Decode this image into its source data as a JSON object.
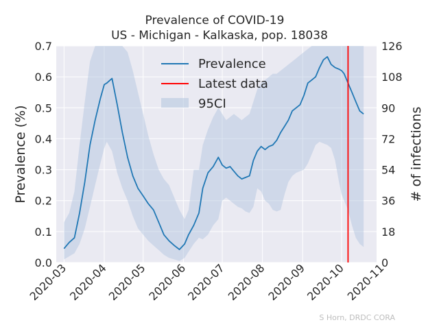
{
  "chart_data": {
    "type": "line",
    "title": "Prevalence of COVID-19",
    "subtitle": "US - Michigan - Kalkaska, pop. 18038",
    "xlabel": "",
    "ylabel": "Prevalence (%)",
    "ylabel_right": "# of infections",
    "ylim": [
      0,
      0.7
    ],
    "ylim_right": [
      0,
      126
    ],
    "y_ticks": [
      "0.0",
      "0.1",
      "0.2",
      "0.3",
      "0.4",
      "0.5",
      "0.6",
      "0.7"
    ],
    "y_ticks_right": [
      "0",
      "18",
      "36",
      "54",
      "72",
      "90",
      "108",
      "126"
    ],
    "x_ticks": [
      "2020-03",
      "2020-04",
      "2020-05",
      "2020-06",
      "2020-07",
      "2020-08",
      "2020-09",
      "2020-10",
      "2020-11"
    ],
    "xlim": [
      "2020-02-24",
      "2020-10-28"
    ],
    "grid": true,
    "legend_position": "top-center",
    "legend": [
      {
        "label": "Prevalence",
        "kind": "line",
        "color": "#1f77b4"
      },
      {
        "label": "Latest data",
        "kind": "line",
        "color": "#ff0000"
      },
      {
        "label": "95CI",
        "kind": "patch",
        "color": "#b0c4de"
      }
    ],
    "latest_data_date": "2020-10-06",
    "series": [
      {
        "name": "Prevalence",
        "x": [
          "2020-03-01",
          "2020-03-05",
          "2020-03-09",
          "2020-03-13",
          "2020-03-17",
          "2020-03-21",
          "2020-03-25",
          "2020-03-29",
          "2020-04-01",
          "2020-04-03",
          "2020-04-07",
          "2020-04-11",
          "2020-04-15",
          "2020-04-19",
          "2020-04-23",
          "2020-04-27",
          "2020-05-01",
          "2020-05-05",
          "2020-05-09",
          "2020-05-13",
          "2020-05-17",
          "2020-05-21",
          "2020-05-25",
          "2020-05-29",
          "2020-06-02",
          "2020-06-05",
          "2020-06-09",
          "2020-06-13",
          "2020-06-16",
          "2020-06-20",
          "2020-06-24",
          "2020-06-28",
          "2020-07-01",
          "2020-07-04",
          "2020-07-07",
          "2020-07-10",
          "2020-07-13",
          "2020-07-16",
          "2020-07-19",
          "2020-07-22",
          "2020-07-25",
          "2020-07-28",
          "2020-07-31",
          "2020-08-03",
          "2020-08-06",
          "2020-08-09",
          "2020-08-12",
          "2020-08-15",
          "2020-08-18",
          "2020-08-21",
          "2020-08-24",
          "2020-08-27",
          "2020-08-30",
          "2020-09-02",
          "2020-09-05",
          "2020-09-08",
          "2020-09-11",
          "2020-09-14",
          "2020-09-17",
          "2020-09-20",
          "2020-09-23",
          "2020-09-26",
          "2020-09-29",
          "2020-10-01",
          "2020-10-03",
          "2020-10-06",
          "2020-10-09",
          "2020-10-12",
          "2020-10-15",
          "2020-10-18"
        ],
        "values": [
          0.045,
          0.065,
          0.08,
          0.16,
          0.26,
          0.38,
          0.46,
          0.53,
          0.575,
          0.58,
          0.595,
          0.51,
          0.42,
          0.34,
          0.28,
          0.24,
          0.215,
          0.19,
          0.17,
          0.13,
          0.09,
          0.07,
          0.055,
          0.042,
          0.06,
          0.09,
          0.12,
          0.16,
          0.24,
          0.29,
          0.31,
          0.34,
          0.315,
          0.305,
          0.31,
          0.295,
          0.28,
          0.27,
          0.275,
          0.28,
          0.33,
          0.36,
          0.375,
          0.365,
          0.375,
          0.38,
          0.395,
          0.42,
          0.44,
          0.46,
          0.49,
          0.5,
          0.51,
          0.54,
          0.58,
          0.59,
          0.6,
          0.63,
          0.655,
          0.665,
          0.64,
          0.63,
          0.625,
          0.62,
          0.61,
          0.58,
          0.55,
          0.52,
          0.49,
          0.48
        ]
      },
      {
        "name": "95CI",
        "x": [
          "2020-03-01",
          "2020-03-05",
          "2020-03-09",
          "2020-03-13",
          "2020-03-17",
          "2020-03-21",
          "2020-03-25",
          "2020-03-29",
          "2020-04-01",
          "2020-04-03",
          "2020-04-07",
          "2020-04-11",
          "2020-04-15",
          "2020-04-19",
          "2020-04-23",
          "2020-04-27",
          "2020-05-01",
          "2020-05-05",
          "2020-05-09",
          "2020-05-13",
          "2020-05-17",
          "2020-05-21",
          "2020-05-25",
          "2020-05-29",
          "2020-06-02",
          "2020-06-05",
          "2020-06-09",
          "2020-06-13",
          "2020-06-16",
          "2020-06-20",
          "2020-06-24",
          "2020-06-28",
          "2020-07-01",
          "2020-07-04",
          "2020-07-07",
          "2020-07-10",
          "2020-07-13",
          "2020-07-16",
          "2020-07-19",
          "2020-07-22",
          "2020-07-25",
          "2020-07-28",
          "2020-07-31",
          "2020-08-03",
          "2020-08-06",
          "2020-08-09",
          "2020-08-12",
          "2020-08-15",
          "2020-08-18",
          "2020-08-21",
          "2020-08-24",
          "2020-08-27",
          "2020-08-30",
          "2020-09-02",
          "2020-09-05",
          "2020-09-08",
          "2020-09-11",
          "2020-09-14",
          "2020-09-17",
          "2020-09-20",
          "2020-09-23",
          "2020-09-26",
          "2020-09-29",
          "2020-10-01",
          "2020-10-03",
          "2020-10-06",
          "2020-10-09",
          "2020-10-12",
          "2020-10-15",
          "2020-10-18"
        ],
        "lower": [
          0.01,
          0.02,
          0.03,
          0.06,
          0.11,
          0.18,
          0.25,
          0.32,
          0.37,
          0.39,
          0.36,
          0.29,
          0.24,
          0.2,
          0.15,
          0.11,
          0.09,
          0.07,
          0.055,
          0.04,
          0.025,
          0.015,
          0.01,
          0.005,
          0.015,
          0.035,
          0.06,
          0.08,
          0.075,
          0.09,
          0.12,
          0.14,
          0.2,
          0.21,
          0.2,
          0.19,
          0.18,
          0.175,
          0.165,
          0.16,
          0.18,
          0.24,
          0.23,
          0.2,
          0.19,
          0.17,
          0.165,
          0.17,
          0.22,
          0.26,
          0.28,
          0.29,
          0.295,
          0.3,
          0.32,
          0.35,
          0.38,
          0.39,
          0.385,
          0.38,
          0.37,
          0.33,
          0.26,
          0.22,
          0.2,
          0.17,
          0.12,
          0.08,
          0.06,
          0.05
        ],
        "upper": [
          0.13,
          0.16,
          0.23,
          0.38,
          0.52,
          0.65,
          0.7,
          0.7,
          0.7,
          0.7,
          0.7,
          0.7,
          0.7,
          0.68,
          0.62,
          0.55,
          0.48,
          0.41,
          0.35,
          0.3,
          0.27,
          0.25,
          0.21,
          0.17,
          0.14,
          0.17,
          0.3,
          0.3,
          0.38,
          0.43,
          0.47,
          0.5,
          0.48,
          0.46,
          0.47,
          0.48,
          0.47,
          0.46,
          0.47,
          0.48,
          0.52,
          0.56,
          0.58,
          0.59,
          0.6,
          0.61,
          0.61,
          0.62,
          0.63,
          0.64,
          0.65,
          0.66,
          0.67,
          0.68,
          0.69,
          0.7,
          0.7,
          0.7,
          0.7,
          0.7,
          0.7,
          0.7,
          0.7,
          0.7,
          0.7,
          0.7,
          0.7,
          0.7,
          0.7,
          0.7
        ]
      }
    ],
    "credit": "S Horn, DRDC CORA"
  },
  "colors": {
    "background": "#ffffff",
    "plot_background": "#eaeaf2",
    "grid": "#ffffff",
    "prevalence": "#1f77b4",
    "latest": "#ff0000",
    "ci": "#b0c4de"
  }
}
